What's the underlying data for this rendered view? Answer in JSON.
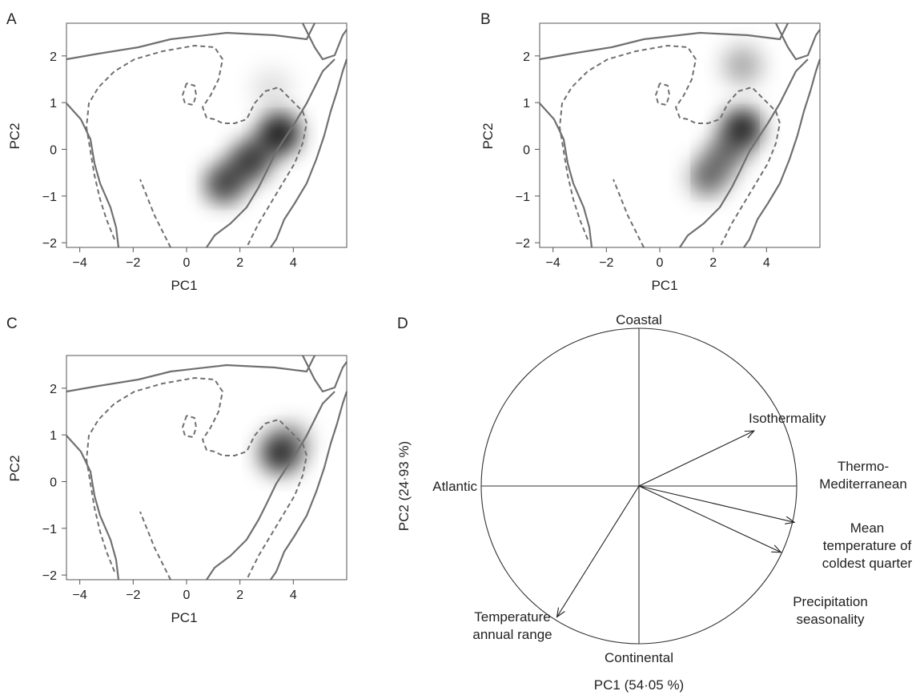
{
  "chart_data": [
    {
      "panel": "A",
      "type": "heatmap",
      "xlabel": "PC1",
      "ylabel": "PC2",
      "xlim": [
        -4.5,
        6
      ],
      "ylim": [
        -2.1,
        2.7
      ],
      "xticks": [
        "−4",
        "−2",
        "0",
        "2",
        "4"
      ],
      "xtick_values": [
        -4,
        -2,
        0,
        2,
        4
      ],
      "yticks": [
        "−2",
        "−1",
        "0",
        "1",
        "2"
      ],
      "ytick_values": [
        -2,
        -1,
        0,
        1,
        2
      ],
      "density": [
        {
          "x": 3.5,
          "y": 0.35,
          "weight": 1.0
        },
        {
          "x": 2.4,
          "y": -0.25,
          "weight": 0.7
        },
        {
          "x": 1.4,
          "y": -0.75,
          "weight": 0.65
        },
        {
          "x": 3.2,
          "y": 1.3,
          "weight": 0.15
        }
      ]
    },
    {
      "panel": "B",
      "type": "heatmap",
      "xlabel": "PC1",
      "ylabel": "PC2",
      "xlim": [
        -4.5,
        6
      ],
      "ylim": [
        -2.1,
        2.7
      ],
      "xticks": [
        "−4",
        "−2",
        "0",
        "2",
        "4"
      ],
      "xtick_values": [
        -4,
        -2,
        0,
        2,
        4
      ],
      "yticks": [
        "−2",
        "−1",
        "0",
        "1",
        "2"
      ],
      "ytick_values": [
        -2,
        -1,
        0,
        1,
        2
      ],
      "density": [
        {
          "x": 3.1,
          "y": 0.45,
          "weight": 1.0
        },
        {
          "x": 3.1,
          "y": 1.8,
          "weight": 0.4
        },
        {
          "x": 1.8,
          "y": -0.6,
          "weight": 0.5
        },
        {
          "x": 2.5,
          "y": -0.1,
          "weight": 0.45
        }
      ]
    },
    {
      "panel": "C",
      "type": "heatmap",
      "xlabel": "PC1",
      "ylabel": "PC2",
      "xlim": [
        -4.5,
        6
      ],
      "ylim": [
        -2.1,
        2.7
      ],
      "xticks": [
        "−4",
        "−2",
        "0",
        "2",
        "4"
      ],
      "xtick_values": [
        -4,
        -2,
        0,
        2,
        4
      ],
      "yticks": [
        "−2",
        "−1",
        "0",
        "1",
        "2"
      ],
      "ytick_values": [
        -2,
        -1,
        0,
        1,
        2
      ],
      "density": [
        {
          "x": 3.5,
          "y": 0.6,
          "weight": 1.0
        },
        {
          "x": 3.9,
          "y": 0.85,
          "weight": 0.4
        }
      ]
    },
    {
      "panel": "D",
      "type": "correlation-circle",
      "xlabel": "PC1 (54·05 %)",
      "ylabel": "PC2 (24·93 %)",
      "axis_labels": {
        "top": "Coastal",
        "bottom": "Continental",
        "left": "Atlantic",
        "right": [
          "Thermo-",
          "Mediterranean"
        ]
      },
      "vectors": [
        {
          "label": [
            "Isothermality"
          ],
          "x": 0.73,
          "y": 0.35
        },
        {
          "label": [
            "Mean",
            "temperature of",
            "coldest quarter"
          ],
          "x": 0.985,
          "y": -0.23
        },
        {
          "label": [
            "Precipitation",
            "seasonality"
          ],
          "x": 0.9,
          "y": -0.42
        },
        {
          "label": [
            "Temperature",
            "annual range"
          ],
          "x": -0.52,
          "y": -0.83
        }
      ]
    }
  ]
}
